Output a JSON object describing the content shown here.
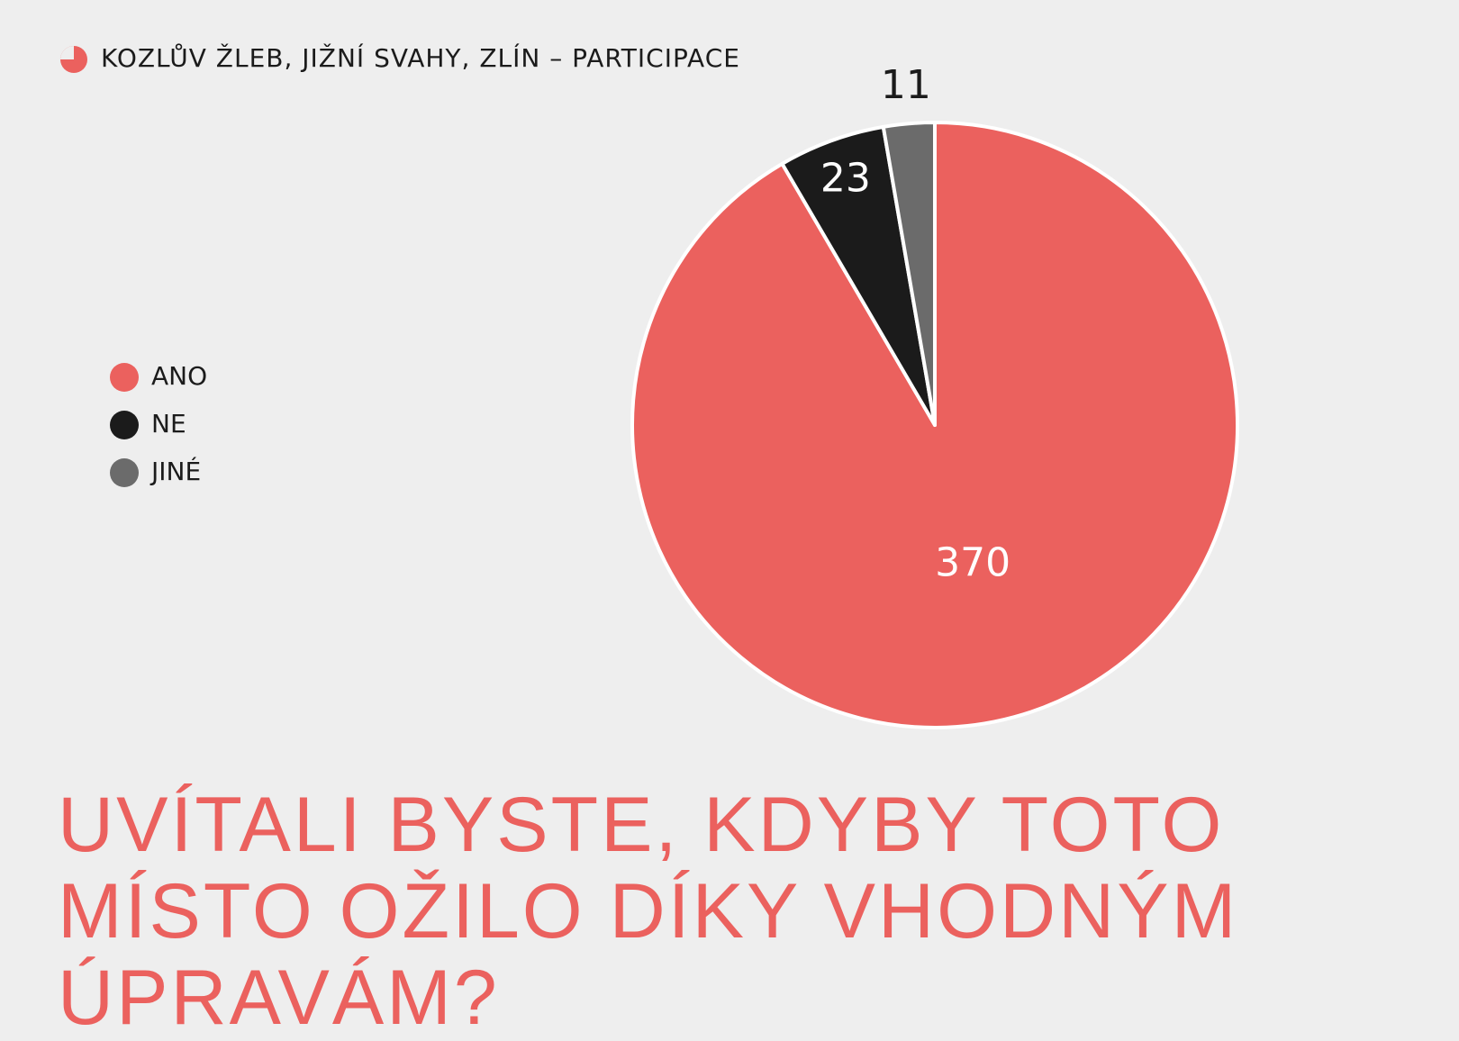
{
  "chart_data": {
    "type": "pie",
    "title": "KOZLŮV ŽLEB, JIŽNÍ SVAHY, ZLÍN – PARTICIPACE",
    "question": "UVÍTALI BYSTE, KDYBY TOTO MÍSTO OŽILO DÍKY VHODNÝM ÚPRAVÁM?",
    "categories": [
      "ANO",
      "NE",
      "JINÉ"
    ],
    "values": [
      370,
      23,
      11
    ],
    "colors": [
      "#eb615e",
      "#1b1b1b",
      "#6b6b6b"
    ],
    "legend": "left"
  }
}
